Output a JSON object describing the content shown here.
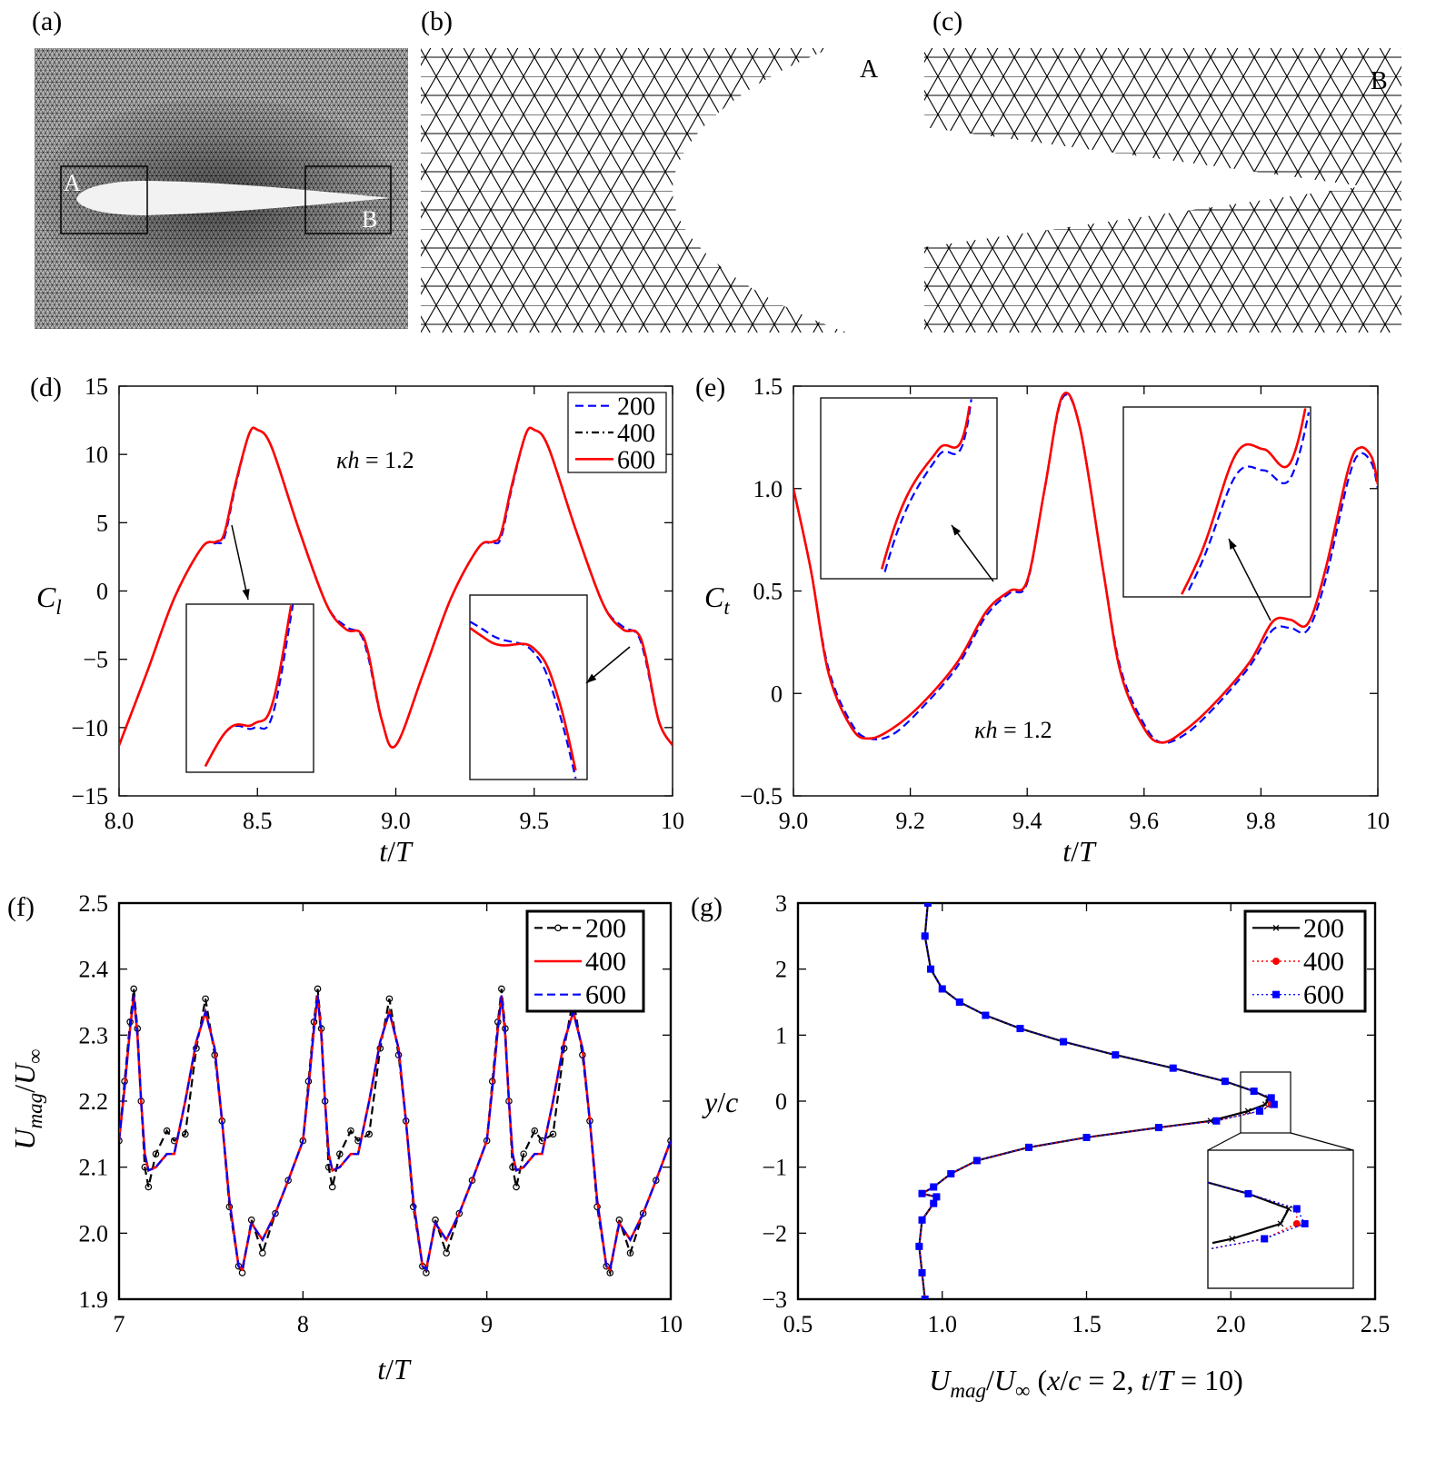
{
  "panels": {
    "a": "(a)",
    "b": "(b)",
    "c": "(c)",
    "d": "(d)",
    "e": "(e)",
    "f": "(f)",
    "g": "(g)"
  },
  "mesh": {
    "zoom_box_labels": [
      "A",
      "B"
    ],
    "detail_labels": {
      "b": "A",
      "c": "B"
    }
  },
  "chart_data": [
    {
      "id": "d",
      "type": "line",
      "xlabel_parts": [
        {
          "t": "t",
          "s": "i"
        },
        {
          "t": "/",
          "s": "r"
        },
        {
          "t": "T",
          "s": "i"
        }
      ],
      "ylabel_parts": [
        {
          "t": "C",
          "s": "i"
        },
        {
          "t": "l",
          "s": "sub-i"
        }
      ],
      "xlim": [
        8,
        10
      ],
      "ylim": [
        -15,
        15
      ],
      "xticks": [
        8,
        8.5,
        9,
        9.5,
        10
      ],
      "xtick_labels": [
        "8.0",
        "8.5",
        "9.0",
        "9.5",
        "10"
      ],
      "yticks": [
        -15,
        -10,
        -5,
        0,
        5,
        10,
        15
      ],
      "ytick_labels": [
        "−15",
        "−10",
        "−5",
        "0",
        "5",
        "10",
        "15"
      ],
      "annotation_parts": [
        {
          "t": "κh",
          "s": "i"
        },
        {
          "t": " = 1.2",
          "s": "r"
        }
      ],
      "legend_placement": "top-right",
      "insets": 2,
      "x": [
        8,
        8.1,
        8.2,
        8.3,
        8.35,
        8.38,
        8.42,
        8.47,
        8.5,
        8.55,
        8.65,
        8.75,
        8.82,
        8.87,
        8.9,
        8.95,
        9,
        9.1,
        9.2,
        9.3,
        9.35,
        9.38,
        9.42,
        9.47,
        9.5,
        9.55,
        9.65,
        9.75,
        9.82,
        9.87,
        9.9,
        9.95,
        10
      ],
      "series": [
        {
          "name": "200",
          "color": "#0000ff",
          "style": "dashed",
          "values": [
            -11.3,
            -6,
            -0.5,
            3.2,
            3.5,
            3.9,
            7.6,
            11.5,
            11.8,
            10.6,
            4.5,
            -1,
            -2.6,
            -3.1,
            -4.8,
            -9.5,
            -11.3,
            -6,
            -0.5,
            3.2,
            3.5,
            3.9,
            7.6,
            11.5,
            11.8,
            10.6,
            4.5,
            -1,
            -2.6,
            -3.1,
            -4.8,
            -9.5,
            -11.3
          ]
        },
        {
          "name": "400",
          "color": "#000000",
          "style": "dashdot",
          "values": [
            -11.3,
            -6,
            -0.5,
            3.2,
            3.6,
            4.2,
            7.8,
            11.5,
            11.8,
            10.6,
            4.5,
            -1,
            -2.8,
            -3,
            -4.5,
            -9.5,
            -11.3,
            -6,
            -0.5,
            3.2,
            3.6,
            4.2,
            7.8,
            11.5,
            11.8,
            10.6,
            4.5,
            -1,
            -2.8,
            -3,
            -4.5,
            -9.5,
            -11.3
          ]
        },
        {
          "name": "600",
          "color": "#ff0000",
          "style": "solid",
          "values": [
            -11.3,
            -6,
            -0.5,
            3.2,
            3.6,
            4.2,
            7.8,
            11.5,
            11.8,
            10.6,
            4.5,
            -1,
            -2.8,
            -3,
            -4.5,
            -9.5,
            -11.3,
            -6,
            -0.5,
            3.2,
            3.6,
            4.2,
            7.8,
            11.5,
            11.8,
            10.6,
            4.5,
            -1,
            -2.8,
            -3,
            -4.5,
            -9.5,
            -11.3
          ]
        }
      ]
    },
    {
      "id": "e",
      "type": "line",
      "xlabel_parts": [
        {
          "t": "t",
          "s": "i"
        },
        {
          "t": "/",
          "s": "r"
        },
        {
          "t": "T",
          "s": "i"
        }
      ],
      "ylabel_parts": [
        {
          "t": "C",
          "s": "i"
        },
        {
          "t": "t",
          "s": "sub-i"
        }
      ],
      "xlim": [
        9,
        10
      ],
      "ylim": [
        -0.5,
        1.5
      ],
      "xticks": [
        9,
        9.2,
        9.4,
        9.6,
        9.8,
        10
      ],
      "xtick_labels": [
        "9.0",
        "9.2",
        "9.4",
        "9.6",
        "9.8",
        "10"
      ],
      "yticks": [
        -0.5,
        0,
        0.5,
        1,
        1.5
      ],
      "ytick_labels": [
        "−0.5",
        "0",
        "0.5",
        "1.0",
        "1.5"
      ],
      "annotation_parts": [
        {
          "t": "κh",
          "s": "i"
        },
        {
          "t": " = 1.2",
          "s": "r"
        }
      ],
      "insets": 2,
      "x": [
        9.0,
        9.03,
        9.06,
        9.1,
        9.13,
        9.17,
        9.22,
        9.28,
        9.33,
        9.37,
        9.4,
        9.43,
        9.46,
        9.49,
        9.53,
        9.56,
        9.6,
        9.63,
        9.67,
        9.72,
        9.78,
        9.82,
        9.85,
        9.88,
        9.91,
        9.95,
        9.97,
        9.99,
        10.0
      ],
      "series": [
        {
          "name": "200",
          "color": "#0000ff",
          "style": "dashed",
          "values": [
            1.0,
            0.6,
            0.12,
            -0.15,
            -0.22,
            -0.2,
            -0.07,
            0.13,
            0.38,
            0.49,
            0.54,
            1.0,
            1.44,
            1.3,
            0.6,
            0.12,
            -0.15,
            -0.24,
            -0.2,
            -0.07,
            0.13,
            0.31,
            0.32,
            0.31,
            0.55,
            1.05,
            1.17,
            1.12,
            1.0
          ]
        },
        {
          "name": "400",
          "color": "#000000",
          "style": "dashdot",
          "values": [
            1.0,
            0.6,
            0.1,
            -0.17,
            -0.22,
            -0.17,
            -0.05,
            0.15,
            0.4,
            0.5,
            0.55,
            1.0,
            1.45,
            1.3,
            0.6,
            0.1,
            -0.17,
            -0.24,
            -0.18,
            -0.05,
            0.15,
            0.35,
            0.36,
            0.34,
            0.6,
            1.1,
            1.2,
            1.15,
            1.02
          ]
        },
        {
          "name": "600",
          "color": "#ff0000",
          "style": "solid",
          "values": [
            1.0,
            0.6,
            0.1,
            -0.17,
            -0.22,
            -0.17,
            -0.05,
            0.15,
            0.4,
            0.5,
            0.55,
            1.0,
            1.45,
            1.3,
            0.6,
            0.1,
            -0.17,
            -0.24,
            -0.18,
            -0.05,
            0.15,
            0.35,
            0.36,
            0.34,
            0.6,
            1.1,
            1.2,
            1.15,
            1.02
          ]
        }
      ]
    },
    {
      "id": "f",
      "type": "line",
      "xlabel_parts": [
        {
          "t": "t",
          "s": "i"
        },
        {
          "t": "/",
          "s": "r"
        },
        {
          "t": "T",
          "s": "i"
        }
      ],
      "ylabel_parts": [
        {
          "t": "U",
          "s": "i"
        },
        {
          "t": "mag",
          "s": "sub-i"
        },
        {
          "t": "/",
          "s": "r"
        },
        {
          "t": "U",
          "s": "i"
        },
        {
          "t": "∞",
          "s": "sub-r"
        }
      ],
      "xlim": [
        7,
        10
      ],
      "ylim": [
        1.9,
        2.5
      ],
      "xticks": [
        7,
        8,
        9,
        10
      ],
      "xtick_labels": [
        "7",
        "8",
        "9",
        "10"
      ],
      "yticks": [
        1.9,
        2.0,
        2.1,
        2.2,
        2.3,
        2.4,
        2.5
      ],
      "ytick_labels": [
        "1.9",
        "2.0",
        "2.1",
        "2.2",
        "2.3",
        "2.4",
        "2.5"
      ],
      "legend_placement": "top-right",
      "x": [
        7,
        7.03,
        7.06,
        7.08,
        7.1,
        7.12,
        7.14,
        7.16,
        7.2,
        7.26,
        7.3,
        7.36,
        7.42,
        7.47,
        7.52,
        7.56,
        7.6,
        7.65,
        7.67,
        7.72,
        7.78,
        7.85,
        7.92,
        8,
        8.03,
        8.06,
        8.08,
        8.1,
        8.12,
        8.14,
        8.16,
        8.2,
        8.26,
        8.3,
        8.36,
        8.42,
        8.47,
        8.52,
        8.56,
        8.6,
        8.65,
        8.67,
        8.72,
        8.78,
        8.85,
        8.92,
        9,
        9.03,
        9.06,
        9.08,
        9.1,
        9.12,
        9.14,
        9.16,
        9.2,
        9.26,
        9.3,
        9.36,
        9.42,
        9.47,
        9.52,
        9.56,
        9.6,
        9.65,
        9.67,
        9.72,
        9.78,
        9.85,
        9.92,
        10
      ],
      "series": [
        {
          "name": "200",
          "color": "#000000",
          "style": "dashed-circle",
          "values": [
            2.14,
            2.23,
            2.32,
            2.37,
            2.31,
            2.2,
            2.1,
            2.07,
            2.12,
            2.155,
            2.14,
            2.15,
            2.28,
            2.355,
            2.27,
            2.17,
            2.04,
            1.95,
            1.94,
            2.02,
            1.97,
            2.03,
            2.08,
            2.14,
            2.23,
            2.32,
            2.37,
            2.31,
            2.2,
            2.1,
            2.07,
            2.12,
            2.155,
            2.14,
            2.15,
            2.28,
            2.355,
            2.27,
            2.17,
            2.04,
            1.95,
            1.94,
            2.02,
            1.97,
            2.03,
            2.08,
            2.14,
            2.23,
            2.32,
            2.37,
            2.31,
            2.2,
            2.1,
            2.07,
            2.12,
            2.155,
            2.14,
            2.15,
            2.28,
            2.355,
            2.27,
            2.17,
            2.04,
            1.95,
            1.94,
            2.02,
            1.97,
            2.03,
            2.08,
            2.14
          ]
        },
        {
          "name": "400",
          "color": "#ff0000",
          "style": "solid",
          "values": [
            2.14,
            2.22,
            2.31,
            2.36,
            2.3,
            2.2,
            2.12,
            2.095,
            2.1,
            2.12,
            2.12,
            2.2,
            2.29,
            2.335,
            2.28,
            2.17,
            2.05,
            1.95,
            1.945,
            2.015,
            1.99,
            2.03,
            2.08,
            2.14,
            2.22,
            2.31,
            2.36,
            2.3,
            2.2,
            2.12,
            2.095,
            2.1,
            2.12,
            2.12,
            2.2,
            2.29,
            2.335,
            2.28,
            2.17,
            2.05,
            1.95,
            1.945,
            2.015,
            1.99,
            2.03,
            2.08,
            2.14,
            2.22,
            2.31,
            2.36,
            2.3,
            2.2,
            2.12,
            2.095,
            2.1,
            2.12,
            2.12,
            2.2,
            2.29,
            2.335,
            2.28,
            2.17,
            2.05,
            1.95,
            1.945,
            2.015,
            1.99,
            2.03,
            2.08,
            2.14
          ]
        },
        {
          "name": "600",
          "color": "#0000ff",
          "style": "dashed",
          "values": [
            2.14,
            2.22,
            2.31,
            2.36,
            2.3,
            2.2,
            2.12,
            2.095,
            2.1,
            2.12,
            2.12,
            2.2,
            2.29,
            2.335,
            2.28,
            2.17,
            2.05,
            1.95,
            1.945,
            2.015,
            1.99,
            2.03,
            2.08,
            2.14,
            2.22,
            2.31,
            2.36,
            2.3,
            2.2,
            2.12,
            2.095,
            2.1,
            2.12,
            2.12,
            2.2,
            2.29,
            2.335,
            2.28,
            2.17,
            2.05,
            1.95,
            1.945,
            2.015,
            1.99,
            2.03,
            2.08,
            2.14,
            2.22,
            2.31,
            2.36,
            2.3,
            2.2,
            2.12,
            2.095,
            2.1,
            2.12,
            2.12,
            2.2,
            2.29,
            2.335,
            2.28,
            2.17,
            2.05,
            1.95,
            1.945,
            2.015,
            1.99,
            2.03,
            2.08,
            2.14
          ]
        }
      ]
    },
    {
      "id": "g",
      "type": "line",
      "orientation": "profile (x = velocity, y = position)",
      "xlabel_parts": [
        {
          "t": "U",
          "s": "i"
        },
        {
          "t": "mag",
          "s": "sub-i"
        },
        {
          "t": "/",
          "s": "r"
        },
        {
          "t": "U",
          "s": "i"
        },
        {
          "t": "∞",
          "s": "sub-r"
        },
        {
          "t": " (",
          "s": "r"
        },
        {
          "t": "x",
          "s": "i"
        },
        {
          "t": "/",
          "s": "r"
        },
        {
          "t": "c",
          "s": "i"
        },
        {
          "t": " = 2, ",
          "s": "r"
        },
        {
          "t": "t",
          "s": "i"
        },
        {
          "t": "/",
          "s": "r"
        },
        {
          "t": "T",
          "s": "i"
        },
        {
          "t": " = 10)",
          "s": "r"
        }
      ],
      "ylabel_parts": [
        {
          "t": "y",
          "s": "i"
        },
        {
          "t": "/",
          "s": "r"
        },
        {
          "t": "c",
          "s": "i"
        }
      ],
      "xlim": [
        0.5,
        2.5
      ],
      "ylim": [
        -3,
        3
      ],
      "xticks": [
        0.5,
        1,
        1.5,
        2,
        2.5
      ],
      "xtick_labels": [
        "0.5",
        "1.0",
        "1.5",
        "2.0",
        "2.5"
      ],
      "yticks": [
        -3,
        -2,
        -1,
        0,
        1,
        2,
        3
      ],
      "ytick_labels": [
        "−3",
        "−2",
        "−1",
        "0",
        "1",
        "2",
        "3"
      ],
      "legend_placement": "top-right",
      "insets": 1,
      "y": [
        3,
        2.5,
        2,
        1.7,
        1.5,
        1.3,
        1.1,
        0.9,
        0.7,
        0.5,
        0.3,
        0.15,
        0.05,
        -0.05,
        -0.15,
        -0.3,
        -0.4,
        -0.55,
        -0.7,
        -0.9,
        -1.1,
        -1.3,
        -1.4,
        -1.45,
        -1.55,
        -1.8,
        -2.2,
        -2.6,
        -3
      ],
      "series": [
        {
          "name": "200",
          "color": "#000000",
          "style": "solid-x",
          "values": [
            0.95,
            0.94,
            0.96,
            1.0,
            1.06,
            1.15,
            1.27,
            1.42,
            1.6,
            1.8,
            1.98,
            2.08,
            2.13,
            2.12,
            2.06,
            1.93,
            1.75,
            1.5,
            1.3,
            1.12,
            1.03,
            0.97,
            0.93,
            0.98,
            0.97,
            0.93,
            0.92,
            0.93,
            0.94
          ]
        },
        {
          "name": "400",
          "color": "#ff0000",
          "style": "dotted-circle",
          "values": [
            0.95,
            0.94,
            0.96,
            1.0,
            1.06,
            1.15,
            1.27,
            1.42,
            1.6,
            1.8,
            1.98,
            2.08,
            2.14,
            2.14,
            2.1,
            1.95,
            1.75,
            1.5,
            1.3,
            1.12,
            1.03,
            0.97,
            0.93,
            0.98,
            0.97,
            0.93,
            0.92,
            0.93,
            0.94
          ]
        },
        {
          "name": "600",
          "color": "#0000ff",
          "style": "dotted-square",
          "values": [
            0.95,
            0.94,
            0.96,
            1.0,
            1.06,
            1.15,
            1.27,
            1.42,
            1.6,
            1.8,
            1.98,
            2.08,
            2.14,
            2.15,
            2.1,
            1.95,
            1.75,
            1.5,
            1.3,
            1.12,
            1.03,
            0.97,
            0.93,
            0.98,
            0.97,
            0.93,
            0.92,
            0.93,
            0.94
          ]
        }
      ]
    }
  ]
}
